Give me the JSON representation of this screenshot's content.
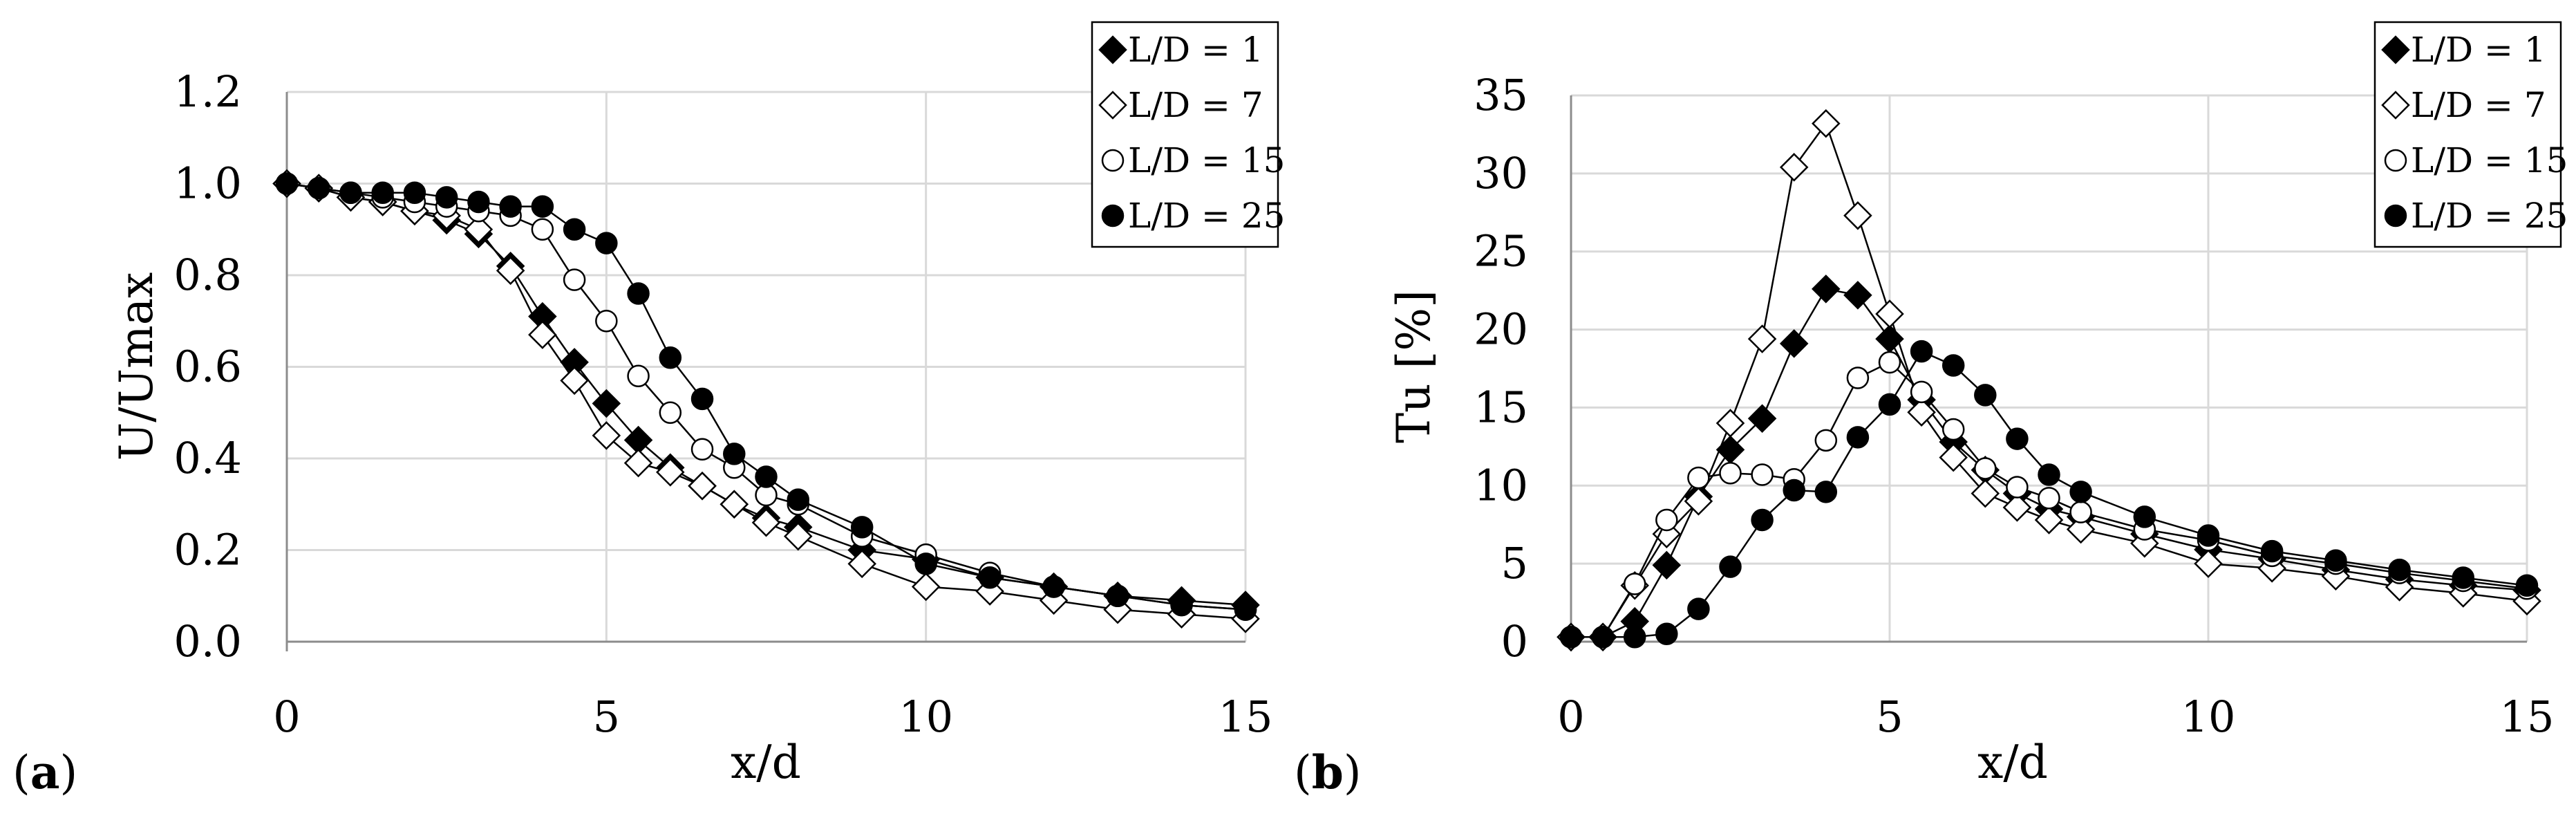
{
  "figure": {
    "panel_labels": [
      {
        "open": "(",
        "letter": "a",
        "close": ")"
      },
      {
        "open": "(",
        "letter": "b",
        "close": ")"
      }
    ]
  },
  "chart_data": [
    {
      "type": "line",
      "panel": "a",
      "title": "",
      "xlabel": "x/d",
      "ylabel": "U/Umax",
      "xlim": [
        0,
        15
      ],
      "ylim": [
        0,
        1.2
      ],
      "xticks": [
        0,
        5,
        10,
        15
      ],
      "xtick_labels": [
        "0",
        "5",
        "10",
        "15"
      ],
      "yticks": [
        0,
        0.2,
        0.4,
        0.6,
        0.8,
        1.0,
        1.2
      ],
      "ytick_labels": [
        "0.0",
        "0.2",
        "0.4",
        "0.6",
        "0.8",
        "1.0",
        "1.2"
      ],
      "grid": "vertical and horizontal",
      "legend_position": "top-right",
      "series": [
        {
          "name": "L/D = 1",
          "marker": "diamond-filled",
          "x": [
            0,
            0.5,
            1,
            1.5,
            2,
            2.5,
            3,
            3.5,
            4,
            4.5,
            5,
            5.5,
            6,
            6.5,
            7,
            7.5,
            8,
            9,
            10,
            11,
            12,
            13,
            14,
            15
          ],
          "y": [
            1.0,
            0.99,
            0.97,
            0.96,
            0.94,
            0.92,
            0.89,
            0.82,
            0.71,
            0.61,
            0.52,
            0.44,
            0.38,
            0.34,
            0.3,
            0.27,
            0.25,
            0.2,
            0.18,
            0.14,
            0.12,
            0.1,
            0.09,
            0.08
          ]
        },
        {
          "name": "L/D = 7",
          "marker": "diamond-open",
          "x": [
            0,
            0.5,
            1,
            1.5,
            2,
            2.5,
            3,
            3.5,
            4,
            4.5,
            5,
            5.5,
            6,
            6.5,
            7,
            7.5,
            8,
            9,
            10,
            11,
            12,
            13,
            14,
            15
          ],
          "y": [
            1.0,
            0.99,
            0.97,
            0.96,
            0.94,
            0.93,
            0.9,
            0.81,
            0.67,
            0.57,
            0.45,
            0.39,
            0.37,
            0.34,
            0.3,
            0.26,
            0.23,
            0.17,
            0.12,
            0.11,
            0.09,
            0.07,
            0.06,
            0.05
          ]
        },
        {
          "name": "L/D = 15",
          "marker": "circle-open",
          "x": [
            0,
            0.5,
            1,
            1.5,
            2,
            2.5,
            3,
            3.5,
            4,
            4.5,
            5,
            5.5,
            6,
            6.5,
            7,
            7.5,
            8,
            9,
            10,
            11,
            12,
            13,
            14,
            15
          ],
          "y": [
            1.0,
            0.99,
            0.98,
            0.97,
            0.96,
            0.95,
            0.94,
            0.93,
            0.9,
            0.79,
            0.7,
            0.58,
            0.5,
            0.42,
            0.38,
            0.32,
            0.3,
            0.23,
            0.19,
            0.15,
            0.12,
            0.1,
            0.08,
            0.07
          ]
        },
        {
          "name": "L/D = 25",
          "marker": "circle-filled",
          "x": [
            0,
            0.5,
            1,
            1.5,
            2,
            2.5,
            3,
            3.5,
            4,
            4.5,
            5,
            5.5,
            6,
            6.5,
            7,
            7.5,
            8,
            9,
            10,
            11,
            12,
            13,
            14,
            15
          ],
          "y": [
            1.0,
            0.99,
            0.98,
            0.98,
            0.98,
            0.97,
            0.96,
            0.95,
            0.95,
            0.9,
            0.87,
            0.76,
            0.62,
            0.53,
            0.41,
            0.36,
            0.31,
            0.25,
            0.17,
            0.14,
            0.12,
            0.1,
            0.08,
            0.07
          ]
        }
      ]
    },
    {
      "type": "line",
      "panel": "b",
      "title": "",
      "xlabel": "x/d",
      "ylabel": "Tu [%]",
      "xlim": [
        0,
        15
      ],
      "ylim": [
        0,
        35
      ],
      "xticks": [
        0,
        5,
        10,
        15
      ],
      "xtick_labels": [
        "0",
        "5",
        "10",
        "15"
      ],
      "yticks": [
        0,
        5,
        10,
        15,
        20,
        25,
        30,
        35
      ],
      "ytick_labels": [
        "0",
        "5",
        "10",
        "15",
        "20",
        "25",
        "30",
        "35"
      ],
      "grid": "vertical and horizontal",
      "legend_position": "top-right",
      "series": [
        {
          "name": "L/D = 1",
          "marker": "diamond-filled",
          "x": [
            0,
            0.5,
            1,
            1.5,
            2,
            2.5,
            3,
            3.5,
            4,
            4.5,
            5,
            5.5,
            6,
            6.5,
            7,
            7.5,
            8,
            9,
            10,
            11,
            12,
            13,
            14,
            15
          ],
          "y": [
            0.3,
            0.3,
            1.3,
            4.9,
            9.3,
            12.3,
            14.3,
            19.1,
            22.6,
            22.2,
            19.4,
            15.5,
            12.8,
            11.0,
            9.5,
            8.5,
            8.0,
            6.9,
            5.9,
            5.3,
            4.6,
            4.0,
            3.6,
            3.3
          ]
        },
        {
          "name": "L/D = 7",
          "marker": "diamond-open",
          "x": [
            0,
            0.5,
            1,
            1.5,
            2,
            2.5,
            3,
            3.5,
            4,
            4.5,
            5,
            5.5,
            6,
            6.5,
            7,
            7.5,
            8,
            9,
            10,
            11,
            12,
            13,
            14,
            15
          ],
          "y": [
            0.3,
            0.3,
            3.6,
            6.9,
            9.0,
            14.0,
            19.4,
            30.4,
            33.2,
            27.3,
            21.0,
            14.7,
            11.8,
            9.5,
            8.6,
            7.8,
            7.2,
            6.3,
            5.0,
            4.7,
            4.2,
            3.5,
            3.1,
            2.6
          ]
        },
        {
          "name": "L/D = 15",
          "marker": "circle-open",
          "x": [
            0,
            0.5,
            1,
            1.5,
            2,
            2.5,
            3,
            3.5,
            4,
            4.5,
            5,
            5.5,
            6,
            6.5,
            7,
            7.5,
            8,
            9,
            10,
            11,
            12,
            13,
            14,
            15
          ],
          "y": [
            0.3,
            0.3,
            3.7,
            7.8,
            10.5,
            10.8,
            10.7,
            10.4,
            12.9,
            16.9,
            17.9,
            16.0,
            13.6,
            11.1,
            9.9,
            9.2,
            8.3,
            7.2,
            6.5,
            5.5,
            5.0,
            4.4,
            3.9,
            3.4
          ]
        },
        {
          "name": "L/D = 25",
          "marker": "circle-filled",
          "x": [
            0,
            0.5,
            1,
            1.5,
            2,
            2.5,
            3,
            3.5,
            4,
            4.5,
            5,
            5.5,
            6,
            6.5,
            7,
            7.5,
            8,
            9,
            10,
            11,
            12,
            13,
            14,
            15
          ],
          "y": [
            0.3,
            0.3,
            0.3,
            0.5,
            2.1,
            4.8,
            7.8,
            9.7,
            9.6,
            13.1,
            15.2,
            18.6,
            17.7,
            15.8,
            13.0,
            10.7,
            9.6,
            8.0,
            6.8,
            5.8,
            5.2,
            4.6,
            4.1,
            3.6
          ]
        }
      ]
    }
  ]
}
